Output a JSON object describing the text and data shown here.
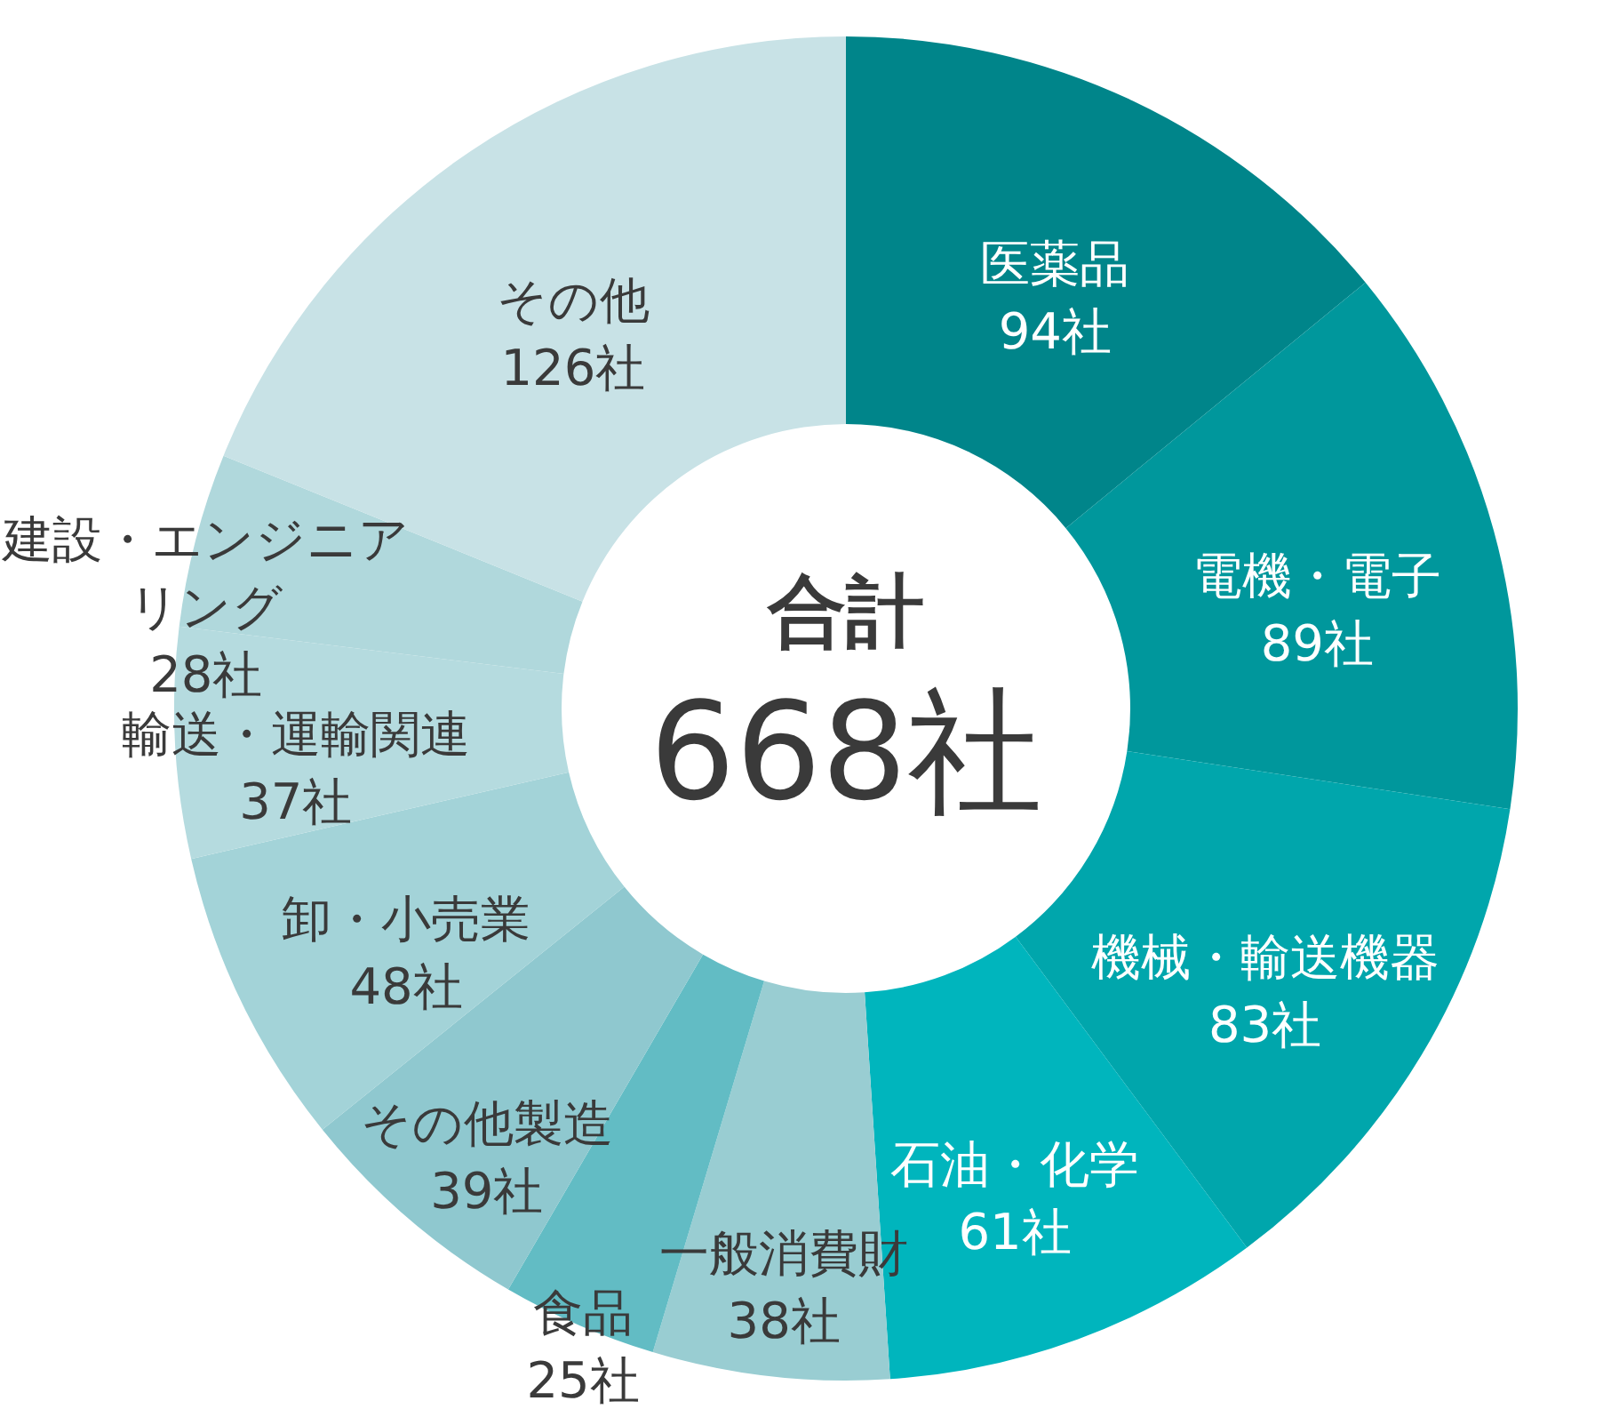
{
  "chart_data": {
    "type": "donut",
    "categories": [
      "医薬品",
      "電機・電子",
      "機械・輸送機器",
      "石油・化学",
      "一般消費財",
      "食品",
      "その他製造",
      "卸・小売業",
      "輸送・運輸関連",
      "建設・エンジニアリング",
      "その他"
    ],
    "values": [
      94,
      89,
      83,
      61,
      38,
      25,
      39,
      48,
      37,
      28,
      126
    ],
    "value_labels": [
      "94社",
      "89社",
      "83社",
      "61社",
      "38社",
      "25社",
      "39社",
      "48社",
      "37社",
      "28社",
      "126社"
    ],
    "colors": [
      "#00858a",
      "#00979c",
      "#00a6ac",
      "#00b5bd",
      "#99cdd2",
      "#62bcc4",
      "#8fc8cf",
      "#a3d3d8",
      "#b5dbdf",
      "#b0d8dc",
      "#c8e2e6"
    ],
    "annotations": [
      "合計",
      "668社"
    ]
  }
}
